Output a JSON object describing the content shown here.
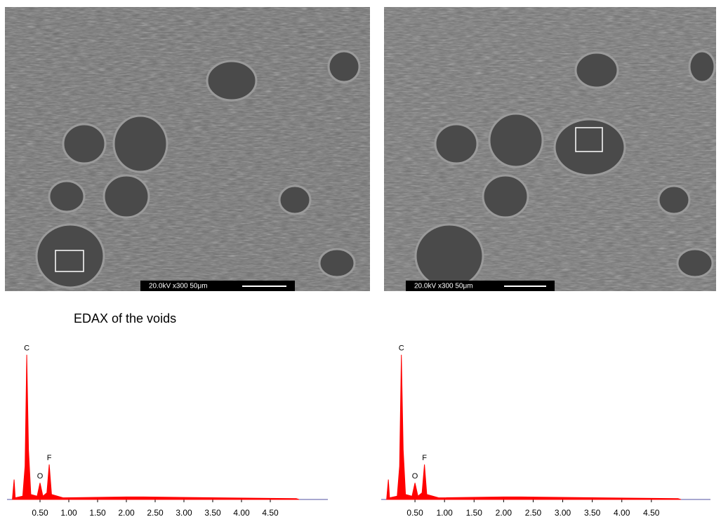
{
  "images": [
    {
      "label": "20.0kV x300 50μm"
    },
    {
      "label": "20.0kV x300 50μm"
    }
  ],
  "caption": "EDAX of  the voids",
  "chart_data": [
    {
      "type": "area",
      "color": "#ff0000",
      "axis_color": "#5050a0",
      "x": [
        0.02,
        0.05,
        0.07,
        0.2,
        0.24,
        0.27,
        0.3,
        0.34,
        0.45,
        0.5,
        0.55,
        0.62,
        0.66,
        0.7,
        0.9,
        2.0,
        2.3,
        4.95,
        5.0
      ],
      "values": [
        0,
        12,
        1,
        2,
        20,
        87,
        30,
        3,
        2,
        10,
        2,
        4,
        21,
        3,
        1,
        1.5,
        1.5,
        0.5,
        0
      ],
      "point_labels": [
        null,
        null,
        null,
        null,
        null,
        "C",
        null,
        null,
        null,
        "O",
        null,
        null,
        "F",
        null,
        null,
        null,
        null,
        null,
        null
      ],
      "xlim": [
        0,
        5.5
      ],
      "ylim": [
        0,
        100
      ],
      "xticks": [
        {
          "value": 0.5,
          "label": "0.50"
        },
        {
          "value": 1.0,
          "label": "1.00"
        },
        {
          "value": 1.5,
          "label": "1.50"
        },
        {
          "value": 2.0,
          "label": "2.00"
        },
        {
          "value": 2.5,
          "label": "2.50"
        },
        {
          "value": 3.0,
          "label": "3.00"
        },
        {
          "value": 3.5,
          "label": "3.50"
        },
        {
          "value": 4.0,
          "label": "4.00"
        },
        {
          "value": 4.5,
          "label": "4.50"
        }
      ]
    },
    {
      "type": "area",
      "color": "#ff0000",
      "axis_color": "#5050a0",
      "x": [
        0.02,
        0.05,
        0.07,
        0.2,
        0.24,
        0.27,
        0.3,
        0.34,
        0.45,
        0.5,
        0.55,
        0.62,
        0.66,
        0.7,
        0.9,
        2.0,
        2.3,
        4.95,
        5.0
      ],
      "values": [
        0,
        12,
        1,
        2,
        20,
        87,
        30,
        3,
        2,
        10,
        2,
        4,
        21,
        3,
        1,
        1.5,
        1.5,
        0.5,
        0
      ],
      "point_labels": [
        null,
        null,
        null,
        null,
        null,
        "C",
        null,
        null,
        null,
        "O",
        null,
        null,
        "F",
        null,
        null,
        null,
        null,
        null,
        null
      ],
      "xlim": [
        0,
        5.5
      ],
      "ylim": [
        0,
        100
      ],
      "xticks": [
        {
          "value": 0.5,
          "label": "0.50"
        },
        {
          "value": 1.0,
          "label": "1.00"
        },
        {
          "value": 1.5,
          "label": "1.50"
        },
        {
          "value": 2.0,
          "label": "2.00"
        },
        {
          "value": 2.5,
          "label": "2.50"
        },
        {
          "value": 3.0,
          "label": "3.00"
        },
        {
          "value": 3.5,
          "label": "3.50"
        },
        {
          "value": 4.0,
          "label": "4.00"
        },
        {
          "value": 4.5,
          "label": "4.50"
        }
      ]
    }
  ]
}
